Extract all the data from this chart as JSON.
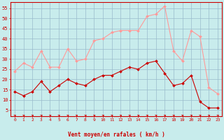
{
  "x": [
    0,
    1,
    2,
    3,
    4,
    5,
    6,
    7,
    8,
    9,
    10,
    11,
    12,
    13,
    14,
    15,
    16,
    17,
    18,
    19,
    20,
    21,
    22,
    23
  ],
  "wind_avg": [
    14,
    12,
    14,
    19,
    14,
    17,
    20,
    18,
    17,
    20,
    22,
    22,
    24,
    26,
    25,
    28,
    29,
    23,
    17,
    18,
    22,
    9,
    6,
    6
  ],
  "wind_gust": [
    24,
    28,
    26,
    34,
    26,
    26,
    35,
    29,
    30,
    39,
    40,
    43,
    44,
    44,
    44,
    51,
    52,
    56,
    34,
    29,
    44,
    41,
    16,
    13
  ],
  "bg_color": "#c8ecec",
  "grid_color": "#99bbcc",
  "line_avg_color": "#cc0000",
  "line_gust_color": "#ff9999",
  "xlabel": "Vent moyen/en rafales ( km/h )",
  "ylim": [
    2,
    58
  ],
  "yticks": [
    5,
    10,
    15,
    20,
    25,
    30,
    35,
    40,
    45,
    50,
    55
  ],
  "xlim": [
    -0.5,
    23.5
  ],
  "xlabel_color": "#cc0000",
  "tick_color": "#cc0000",
  "axis_color": "#cc0000",
  "arrow_color": "#cc0000"
}
